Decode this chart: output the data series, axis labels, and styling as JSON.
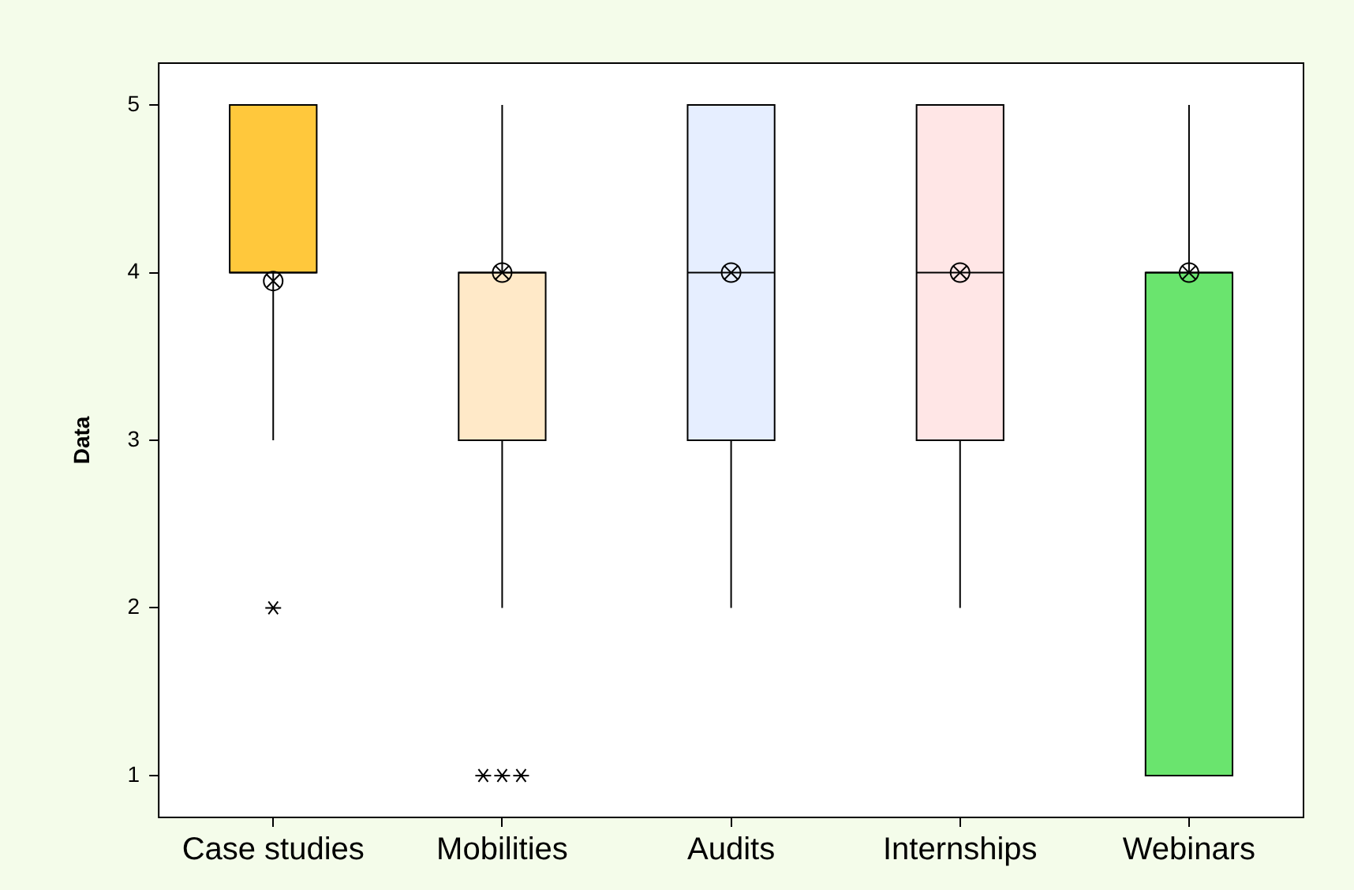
{
  "chart_data": {
    "type": "box",
    "ylabel": "Data",
    "categories": [
      "Case studies",
      "Mobilities",
      "Audits",
      "Internships",
      "Webinars"
    ],
    "colors": [
      "#ffc83c",
      "#ffe9c8",
      "#e6eeff",
      "#ffe6e6",
      "#6ae46e"
    ],
    "boxes": [
      {
        "low": 3,
        "q1": 4,
        "median": 4,
        "q3": 5,
        "high": 5,
        "mean": 3.95,
        "outliers": [
          2
        ]
      },
      {
        "low": 2,
        "q1": 3,
        "median": 4,
        "q3": 4,
        "high": 5,
        "mean": 4,
        "outliers": [
          1,
          1,
          1
        ]
      },
      {
        "low": 2,
        "q1": 3,
        "median": 4,
        "q3": 5,
        "high": 5,
        "mean": 4
      },
      {
        "low": 2,
        "q1": 3,
        "median": 4,
        "q3": 5,
        "high": 5,
        "mean": 4
      },
      {
        "low": 1,
        "q1": 1,
        "median": 4,
        "q3": 4,
        "high": 5,
        "mean": 4
      }
    ],
    "ylim": [
      0.75,
      5.25
    ],
    "yticks": [
      1,
      2,
      3,
      4,
      5
    ]
  }
}
